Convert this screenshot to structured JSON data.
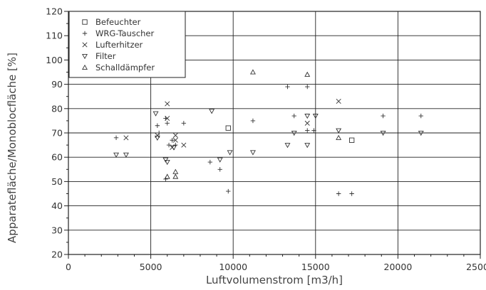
{
  "chart_data": {
    "type": "scatter",
    "xlabel": "Luftvolumenstrom [m3/h]",
    "ylabel": "Apparatefläche/Monoblocfläche [%]",
    "xlim": [
      0,
      25000
    ],
    "ylim": [
      20,
      120
    ],
    "xticks": [
      0,
      5000,
      10000,
      15000,
      20000,
      25000
    ],
    "yticks": [
      20,
      30,
      40,
      50,
      60,
      70,
      80,
      90,
      100,
      110,
      120
    ],
    "grid": true,
    "legend_position": "top-left",
    "series": [
      {
        "name": "Befeuchter",
        "marker": "square",
        "points": [
          [
            9700,
            72
          ],
          [
            17200,
            67
          ]
        ]
      },
      {
        "name": "WRG-Tauscher",
        "marker": "plus",
        "points": [
          [
            2900,
            68
          ],
          [
            5400,
            73
          ],
          [
            5500,
            70
          ],
          [
            5900,
            76
          ],
          [
            6000,
            74
          ],
          [
            5900,
            51
          ],
          [
            6100,
            65
          ],
          [
            6300,
            67
          ],
          [
            6500,
            65
          ],
          [
            7000,
            74
          ],
          [
            8600,
            58
          ],
          [
            9200,
            55
          ],
          [
            9700,
            46
          ],
          [
            11200,
            75
          ],
          [
            13300,
            89
          ],
          [
            13700,
            77
          ],
          [
            14500,
            89
          ],
          [
            14500,
            71
          ],
          [
            14900,
            71
          ],
          [
            16400,
            45
          ],
          [
            17200,
            45
          ],
          [
            19100,
            77
          ],
          [
            21400,
            77
          ]
        ]
      },
      {
        "name": "Lufterhitzer",
        "marker": "x",
        "points": [
          [
            3500,
            68
          ],
          [
            5400,
            69
          ],
          [
            6000,
            82
          ],
          [
            6000,
            76
          ],
          [
            6300,
            64
          ],
          [
            6500,
            69
          ],
          [
            6500,
            67
          ],
          [
            7000,
            65
          ],
          [
            14500,
            74
          ],
          [
            16400,
            83
          ]
        ]
      },
      {
        "name": "Filter",
        "marker": "triangle-down",
        "points": [
          [
            2900,
            61
          ],
          [
            3500,
            61
          ],
          [
            5300,
            78
          ],
          [
            5400,
            68
          ],
          [
            5900,
            59
          ],
          [
            6000,
            58
          ],
          [
            6400,
            64
          ],
          [
            8700,
            79
          ],
          [
            9200,
            59
          ],
          [
            9800,
            62
          ],
          [
            11200,
            62
          ],
          [
            13300,
            65
          ],
          [
            13700,
            70
          ],
          [
            14500,
            77
          ],
          [
            14500,
            65
          ],
          [
            15000,
            77
          ],
          [
            16400,
            71
          ],
          [
            19100,
            70
          ],
          [
            21400,
            70
          ]
        ]
      },
      {
        "name": "Schalldämpfer",
        "marker": "triangle-up",
        "points": [
          [
            6000,
            52
          ],
          [
            6500,
            54
          ],
          [
            6500,
            52
          ],
          [
            11200,
            95
          ],
          [
            14500,
            94
          ],
          [
            16400,
            68
          ]
        ]
      }
    ]
  }
}
